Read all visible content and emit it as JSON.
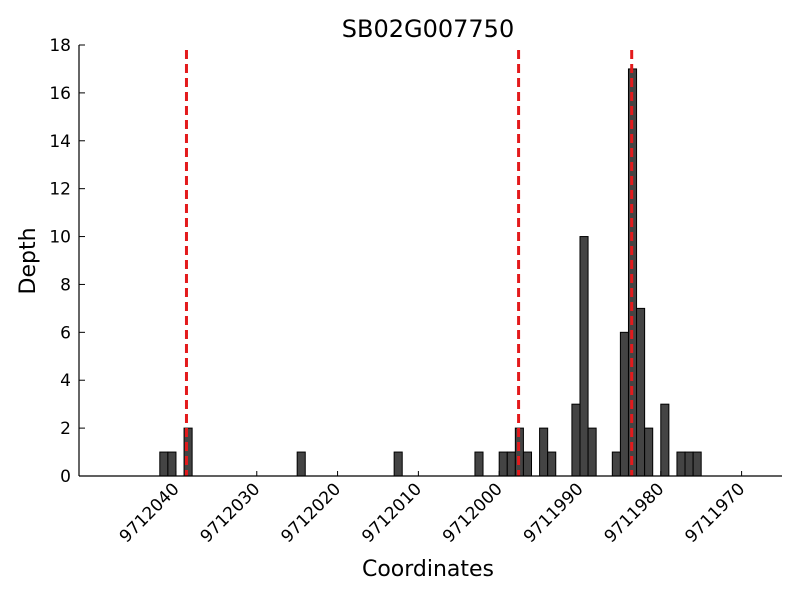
{
  "chart_data": {
    "type": "bar",
    "title": "SB02G007750",
    "xlabel": "Coordinates",
    "ylabel": "Depth",
    "x_reversed": true,
    "xlim": [
      9712052,
      9711965
    ],
    "ylim": [
      0,
      18
    ],
    "x_ticks": [
      9712040,
      9712030,
      9712020,
      9712010,
      9712000,
      9711990,
      9711980,
      9711970
    ],
    "y_ticks": [
      0,
      2,
      4,
      6,
      8,
      10,
      12,
      14,
      16,
      18
    ],
    "bar_color": "#444444",
    "bars": [
      {
        "x": 9712042,
        "depth": 1
      },
      {
        "x": 9712041,
        "depth": 1
      },
      {
        "x": 9712039,
        "depth": 2
      },
      {
        "x": 9712025,
        "depth": 1
      },
      {
        "x": 9712013,
        "depth": 1
      },
      {
        "x": 9712003,
        "depth": 1
      },
      {
        "x": 9712000,
        "depth": 1
      },
      {
        "x": 9711999,
        "depth": 1
      },
      {
        "x": 9711998,
        "depth": 2
      },
      {
        "x": 9711997,
        "depth": 1
      },
      {
        "x": 9711995,
        "depth": 2
      },
      {
        "x": 9711994,
        "depth": 1
      },
      {
        "x": 9711991,
        "depth": 3
      },
      {
        "x": 9711990,
        "depth": 10
      },
      {
        "x": 9711989,
        "depth": 2
      },
      {
        "x": 9711986,
        "depth": 1
      },
      {
        "x": 9711985,
        "depth": 6
      },
      {
        "x": 9711984,
        "depth": 17
      },
      {
        "x": 9711983,
        "depth": 7
      },
      {
        "x": 9711982,
        "depth": 2
      },
      {
        "x": 9711980,
        "depth": 3
      },
      {
        "x": 9711978,
        "depth": 1
      },
      {
        "x": 9711977,
        "depth": 1
      },
      {
        "x": 9711976,
        "depth": 1
      }
    ],
    "reference_lines": {
      "x": [
        9712038.7,
        9711997.6,
        9711983.6
      ],
      "color": "#e31a1c",
      "style": "dashed"
    }
  }
}
